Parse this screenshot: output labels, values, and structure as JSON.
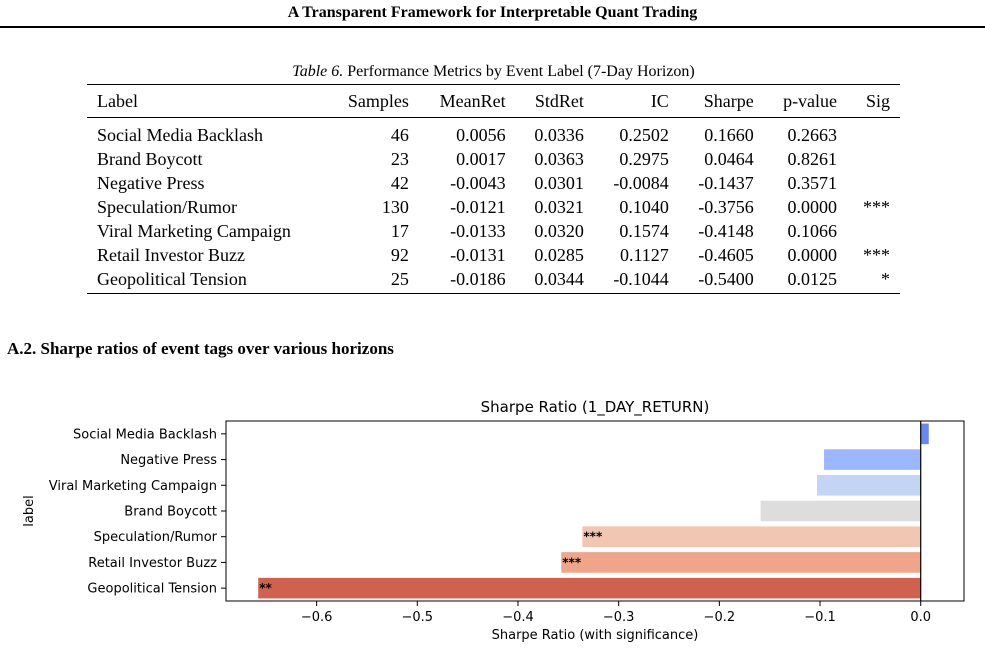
{
  "header": {
    "title": "A Transparent Framework for Interpretable Quant Trading"
  },
  "table": {
    "caption_number": "Table 6.",
    "caption_text": "Performance Metrics by Event Label (7-Day Horizon)",
    "columns": [
      "Label",
      "Samples",
      "MeanRet",
      "StdRet",
      "IC",
      "Sharpe",
      "p-value",
      "Sig"
    ],
    "rows": [
      [
        "Social Media Backlash",
        "46",
        "0.0056",
        "0.0336",
        "0.2502",
        "0.1660",
        "0.2663",
        ""
      ],
      [
        "Brand Boycott",
        "23",
        "0.0017",
        "0.0363",
        "0.2975",
        "0.0464",
        "0.8261",
        ""
      ],
      [
        "Negative Press",
        "42",
        "-0.0043",
        "0.0301",
        "-0.0084",
        "-0.1437",
        "0.3571",
        ""
      ],
      [
        "Speculation/Rumor",
        "130",
        "-0.0121",
        "0.0321",
        "0.1040",
        "-0.3756",
        "0.0000",
        "***"
      ],
      [
        "Viral Marketing Campaign",
        "17",
        "-0.0133",
        "0.0320",
        "0.1574",
        "-0.4148",
        "0.1066",
        ""
      ],
      [
        "Retail Investor Buzz",
        "92",
        "-0.0131",
        "0.0285",
        "0.1127",
        "-0.4605",
        "0.0000",
        "***"
      ],
      [
        "Geopolitical Tension",
        "25",
        "-0.0186",
        "0.0344",
        "-0.1044",
        "-0.5400",
        "0.0125",
        "*"
      ]
    ]
  },
  "section": {
    "heading": "A.2. Sharpe ratios of event tags over various horizons"
  },
  "chart_data": {
    "type": "bar",
    "orientation": "horizontal",
    "title": "Sharpe Ratio (1_DAY_RETURN)",
    "xlabel": "Sharpe Ratio (with significance)",
    "ylabel": "label",
    "categories": [
      "Social Media Backlash",
      "Negative Press",
      "Viral Marketing Campaign",
      "Brand Boycott",
      "Speculation/Rumor",
      "Retail Investor Buzz",
      "Geopolitical Tension"
    ],
    "values": [
      0.008,
      -0.096,
      -0.103,
      -0.159,
      -0.336,
      -0.357,
      -0.658
    ],
    "significance": [
      "",
      "",
      "",
      "",
      "***",
      "***",
      "**"
    ],
    "colors": [
      "#6788ee",
      "#9bb7ff",
      "#c3d5f4",
      "#dddddd",
      "#f2c7b1",
      "#eea58a",
      "#d1614f"
    ],
    "xlim": [
      -0.69,
      0.043
    ],
    "xticks": [
      -0.6,
      -0.5,
      -0.4,
      -0.3,
      -0.2,
      -0.1,
      0.0
    ],
    "xtick_labels": [
      "−0.6",
      "−0.5",
      "−0.4",
      "−0.3",
      "−0.2",
      "−0.1",
      "0.0"
    ],
    "grid": false,
    "zero_line": true
  }
}
